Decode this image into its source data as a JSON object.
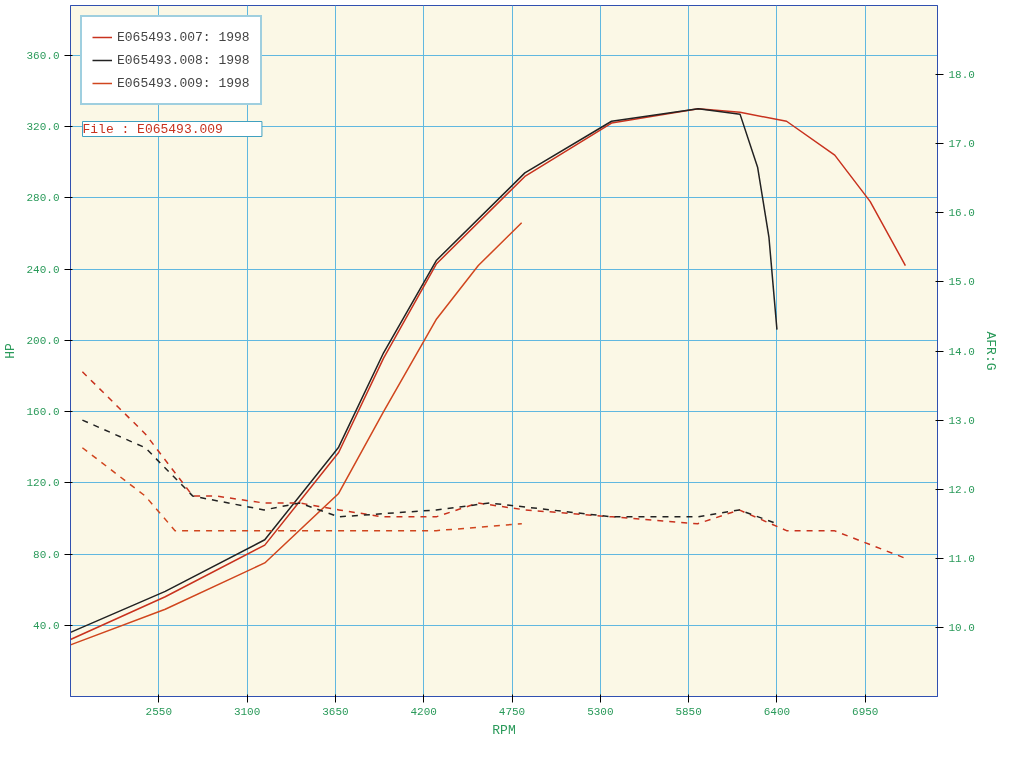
{
  "chart_data": {
    "type": "line",
    "xlabel": "RPM",
    "ylabel": "HP",
    "y2label": "AFR:G",
    "annotations": [
      "File      : E065493.009"
    ],
    "xlim": [
      2000,
      7400
    ],
    "xticks": [
      2550,
      3100,
      3650,
      4200,
      4750,
      5300,
      5850,
      6400,
      6950
    ],
    "ylim": [
      0,
      388
    ],
    "yticks": [
      {
        "value": 40,
        "label": "40.0"
      },
      {
        "value": 80,
        "label": "80.0"
      },
      {
        "value": 120,
        "label": "120.0"
      },
      {
        "value": 160,
        "label": "160.0"
      },
      {
        "value": 200,
        "label": "200.0"
      },
      {
        "value": 240,
        "label": "240.0"
      },
      {
        "value": 280,
        "label": "280.0"
      },
      {
        "value": 320,
        "label": "320.0"
      },
      {
        "value": 360,
        "label": "360.0"
      }
    ],
    "y2lim": [
      9,
      19
    ],
    "y2ticks": [
      {
        "value": 10,
        "label": "10.0"
      },
      {
        "value": 11,
        "label": "11.0"
      },
      {
        "value": 12,
        "label": "12.0"
      },
      {
        "value": 13,
        "label": "13.0"
      },
      {
        "value": 14,
        "label": "14.0"
      },
      {
        "value": 15,
        "label": "15.0"
      },
      {
        "value": 16,
        "label": "16.0"
      },
      {
        "value": 17,
        "label": "17.0"
      },
      {
        "value": 18,
        "label": "18.0"
      }
    ],
    "grid": true,
    "legend": "top left",
    "line_style": "solid",
    "series": [
      {
        "name": "E065493.007: 1998",
        "color": "#c8321e",
        "x": [
          2000,
          2590,
          3210,
          3670,
          3950,
          4280,
          4830,
          5370,
          5910,
          6170,
          6460,
          6760,
          6980,
          7200
        ],
        "values": [
          32,
          56,
          85,
          137,
          190,
          243,
          292,
          322,
          330,
          328,
          323,
          304,
          278,
          242
        ]
      },
      {
        "name": "E065493.008: 1998",
        "color": "#222222",
        "x": [
          2000,
          2590,
          3210,
          3670,
          3950,
          4280,
          4830,
          5370,
          5910,
          6170,
          6280,
          6350,
          6400
        ],
        "values": [
          36,
          59,
          88,
          140,
          193,
          245,
          294,
          323,
          330,
          327,
          297,
          258,
          206
        ]
      },
      {
        "name": "E065493.009: 1998",
        "color": "#d0461e",
        "x": [
          2000,
          2590,
          3210,
          3670,
          3950,
          4280,
          4540,
          4810
        ],
        "values": [
          29,
          49,
          75,
          114,
          160,
          212,
          242,
          266
        ]
      },
      {
        "color": "#c8321e",
        "axis": "y2",
        "line_style": "dashed",
        "x": [
          2074,
          2466,
          2762,
          2910,
          3206,
          3428,
          3672,
          3945,
          4278,
          4537,
          4833,
          5373,
          5906,
          6165,
          6460,
          6756,
          7200
        ],
        "values": [
          13.7,
          12.8,
          11.9,
          11.9,
          11.8,
          11.8,
          11.7,
          11.6,
          11.6,
          11.8,
          11.7,
          11.6,
          11.5,
          11.7,
          11.4,
          11.4,
          11.0
        ]
      },
      {
        "color": "#222222",
        "axis": "y2",
        "line_style": "dashed",
        "x": [
          2074,
          2466,
          2762,
          3206,
          3428,
          3672,
          4278,
          4611,
          5373,
          5906,
          6165,
          6401
        ],
        "values": [
          13.0,
          12.6,
          11.9,
          11.7,
          11.8,
          11.6,
          11.7,
          11.8,
          11.6,
          11.6,
          11.7,
          11.5
        ]
      },
      {
        "color": "#d0461e",
        "axis": "y2",
        "line_style": "dashed",
        "x": [
          2074,
          2466,
          2651,
          2910,
          3206,
          3672,
          4278,
          4811
        ],
        "values": [
          12.6,
          11.9,
          11.4,
          11.4,
          11.4,
          11.4,
          11.4,
          11.5
        ]
      }
    ]
  }
}
